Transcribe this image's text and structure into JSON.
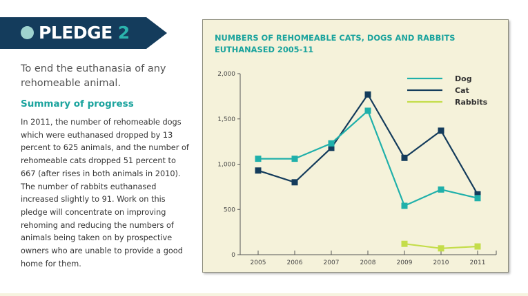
{
  "pledge": {
    "label": "PLEDGE",
    "number": "2"
  },
  "lead": "To end the euthanasia of any rehomeable animal.",
  "summary_heading": "Summary of progress",
  "summary_body": "In 2011, the number of rehomeable dogs which were euthanased dropped by 13 percent to 625 animals, and the number of rehomeable cats dropped 51 percent to 667 (after rises in both animals in 2010). The number of rabbits euthanased increased slightly to 91. Work on this pledge will concentrate on improving rehoming and reducing the numbers of animals being taken on by prospective owners who are unable to provide a good home for them.",
  "colors": {
    "banner": "#143c5c",
    "accent": "#1aa39d",
    "dog": "#1fb0aa",
    "cat": "#143c5c",
    "rabbits": "#c4dd4a",
    "chart_bg": "#f5f2da"
  },
  "chart_data": {
    "type": "line",
    "title": "NUMBERS OF REHOMEABLE CATS, DOGS AND RABBITS EUTHANASED 2005-11",
    "categories": [
      "2005",
      "2006",
      "2007",
      "2008",
      "2009",
      "2010",
      "2011"
    ],
    "y_ticks": [
      "0",
      "500",
      "1,000",
      "1,500",
      "2,000"
    ],
    "ylim": [
      0,
      2000
    ],
    "grid": false,
    "legend_position": "top-right",
    "series": [
      {
        "name": "Dog",
        "color": "#1fb0aa",
        "values": [
          1060,
          1060,
          1230,
          1590,
          540,
          720,
          625
        ]
      },
      {
        "name": "Cat",
        "color": "#143c5c",
        "values": [
          930,
          800,
          1180,
          1770,
          1070,
          1370,
          667
        ]
      },
      {
        "name": "Rabbits",
        "color": "#c4dd4a",
        "values": [
          null,
          null,
          null,
          null,
          120,
          70,
          91
        ]
      }
    ]
  }
}
